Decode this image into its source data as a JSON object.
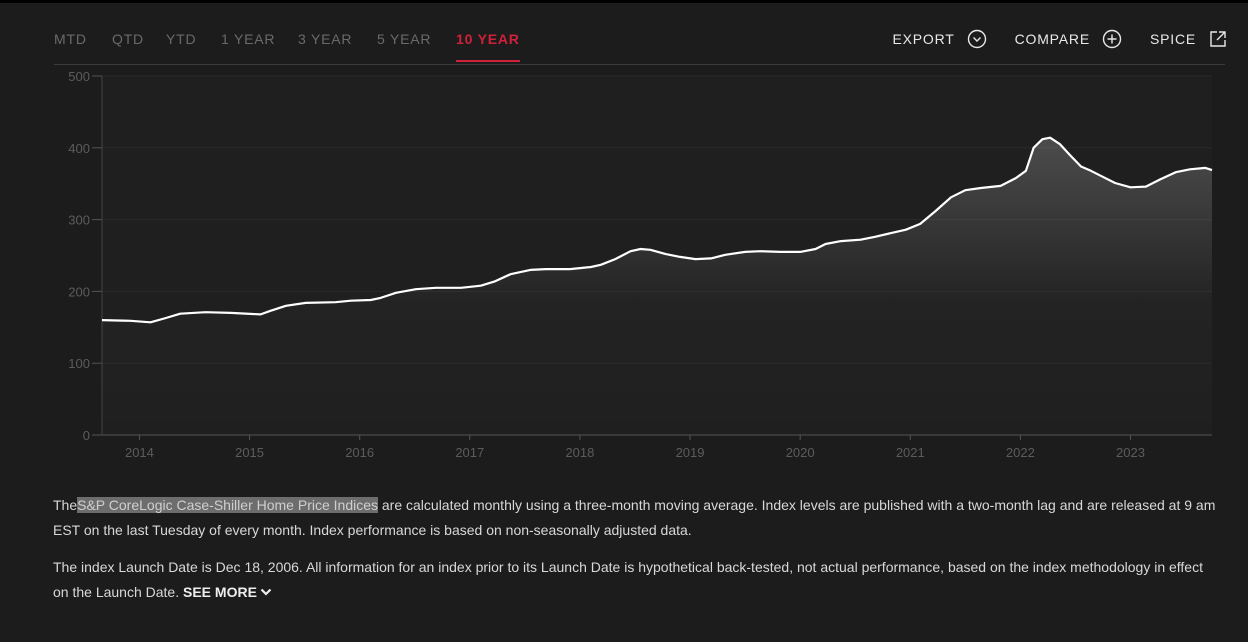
{
  "tabs": [
    "MTD",
    "QTD",
    "YTD",
    "1 YEAR",
    "3 YEAR",
    "5 YEAR",
    "10 YEAR"
  ],
  "active_tab": 6,
  "actions": [
    "EXPORT",
    "COMPARE",
    "SPICE"
  ],
  "chart_data": {
    "type": "line",
    "color": "#ffffff",
    "grid": true,
    "x": [
      2013.66,
      2013.92,
      2014.1,
      2014.24,
      2014.37,
      2014.6,
      2014.83,
      2015.1,
      2015.19,
      2015.33,
      2015.51,
      2015.78,
      2015.92,
      2016.1,
      2016.19,
      2016.33,
      2016.51,
      2016.69,
      2016.92,
      2017.1,
      2017.23,
      2017.37,
      2017.55,
      2017.69,
      2017.91,
      2018.1,
      2018.19,
      2018.32,
      2018.46,
      2018.55,
      2018.64,
      2018.78,
      2018.91,
      2019.05,
      2019.19,
      2019.32,
      2019.5,
      2019.64,
      2019.82,
      2020.0,
      2020.14,
      2020.23,
      2020.37,
      2020.55,
      2020.68,
      2020.82,
      2020.96,
      2021.09,
      2021.23,
      2021.37,
      2021.5,
      2021.64,
      2021.82,
      2021.96,
      2022.05,
      2022.12,
      2022.2,
      2022.27,
      2022.36,
      2022.45,
      2022.55,
      2022.64,
      2022.73,
      2022.86,
      2023.0,
      2023.14,
      2023.27,
      2023.41,
      2023.54,
      2023.68,
      2023.74
    ],
    "values": [
      160,
      159,
      157,
      163,
      169,
      171,
      170,
      168,
      173,
      180,
      184,
      185,
      187,
      188,
      191,
      198,
      203,
      205,
      205,
      208,
      214,
      224,
      230,
      231,
      231,
      234,
      237,
      245,
      256,
      259,
      258,
      252,
      248,
      245,
      246,
      251,
      255,
      256,
      255,
      255,
      259,
      266,
      270,
      272,
      276,
      281,
      286,
      294,
      312,
      331,
      341,
      344,
      347,
      358,
      368,
      400,
      412,
      414,
      405,
      390,
      374,
      368,
      361,
      351,
      345,
      346,
      356,
      366,
      370,
      372,
      369
    ],
    "xlim": [
      2013.66,
      2023.74
    ],
    "xticks": [
      2014,
      2015,
      2016,
      2017,
      2018,
      2019,
      2020,
      2021,
      2022,
      2023
    ],
    "ylim": [
      0,
      500
    ],
    "yticks": [
      0,
      100,
      200,
      300,
      400,
      500
    ]
  },
  "description": {
    "paragraph_1": {
      "before": "The",
      "highlight": "S&P CoreLogic Case-Shiller Home Price Indices",
      "after": "are calculated monthly using a three-month moving average. Index levels are published with a two-month lag and are released at 9 am EST on the last Tuesday of every month. Index performance is based on non-seasonally adjusted data."
    },
    "paragraph_2": {
      "text": "The index Launch Date is Dec 18, 2006. All information for an index prior to its Launch Date is hypothetical back-tested, not actual performance, based on the index methodology in effect on the Launch Date.",
      "link": "SEE MORE"
    }
  }
}
